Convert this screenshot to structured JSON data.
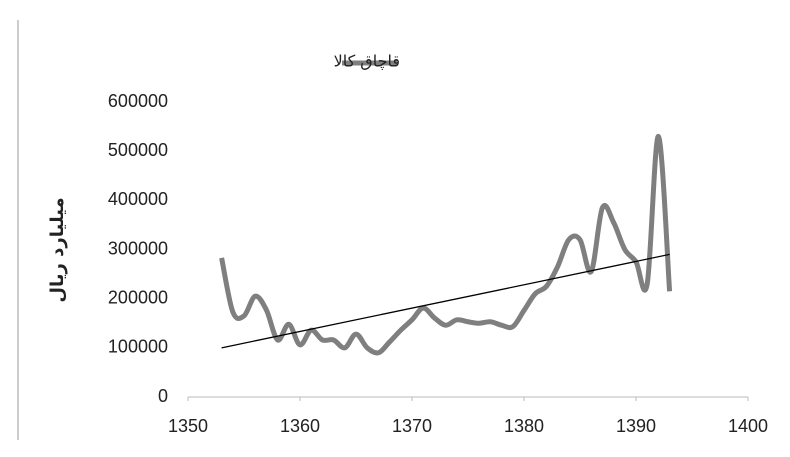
{
  "chart_data": {
    "type": "line",
    "y_label": "میلیارد ریال",
    "xlim": [
      1350,
      1400
    ],
    "xticks": [
      1350,
      1360,
      1370,
      1380,
      1390,
      1400
    ],
    "ylim": [
      0,
      600000
    ],
    "yticks": [
      0,
      100000,
      200000,
      300000,
      400000,
      500000,
      600000
    ],
    "legend": "top",
    "x": [
      1353,
      1354,
      1355,
      1356,
      1357,
      1358,
      1359,
      1360,
      1361,
      1362,
      1363,
      1364,
      1365,
      1366,
      1367,
      1368,
      1369,
      1370,
      1371,
      1372,
      1373,
      1374,
      1375,
      1376,
      1377,
      1378,
      1379,
      1380,
      1381,
      1382,
      1383,
      1384,
      1385,
      1386,
      1387,
      1388,
      1389,
      1390,
      1391,
      1392,
      1393
    ],
    "series": [
      {
        "name": "قاچاق کالا",
        "color": "#7f7f7f",
        "values": [
          283000,
          173000,
          165000,
          205000,
          177000,
          116000,
          148000,
          106000,
          136000,
          116000,
          116000,
          100000,
          128000,
          100000,
          90000,
          112000,
          136000,
          157000,
          181000,
          161000,
          146000,
          157000,
          153000,
          150000,
          153000,
          146000,
          143000,
          176000,
          210000,
          225000,
          265000,
          320000,
          320000,
          255000,
          385000,
          355000,
          300000,
          275000,
          230000,
          530000,
          215000
        ]
      }
    ],
    "trendline": {
      "color": "#000000",
      "x": [
        1353,
        1393
      ],
      "values": [
        100000,
        290000
      ]
    }
  }
}
